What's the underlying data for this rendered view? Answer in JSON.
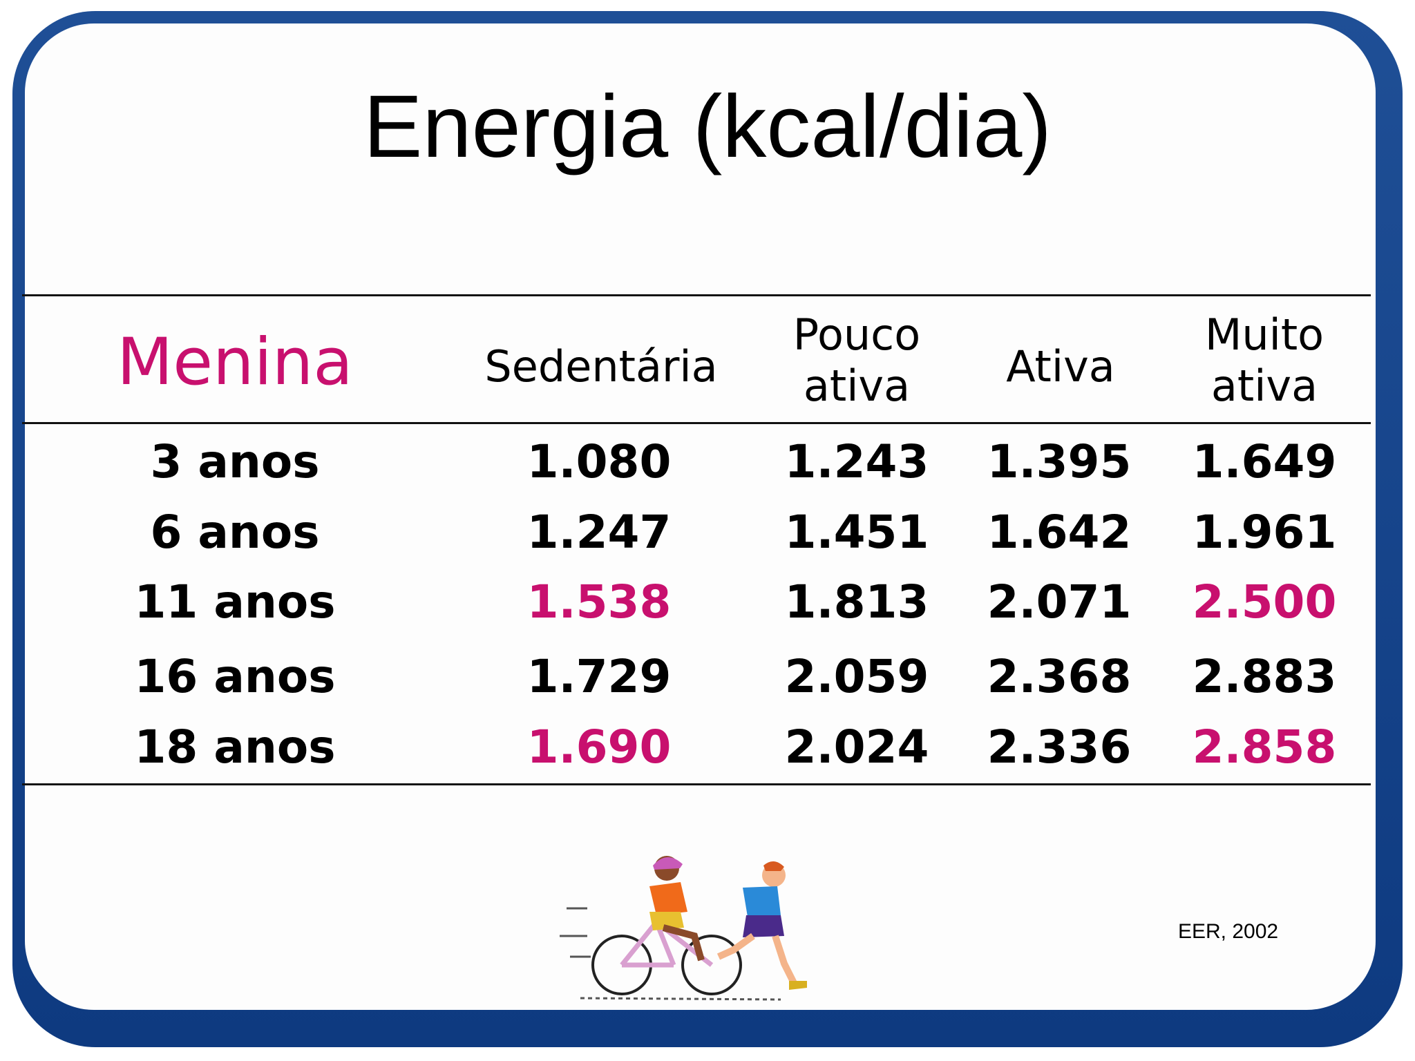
{
  "title": "Energia (kcal/dia)",
  "table": {
    "row_header": "Menina",
    "columns": [
      "Sedentária",
      "Pouco ativa",
      "Ativa",
      "Muito ativa"
    ],
    "rows": [
      {
        "label": "3 anos",
        "values": [
          "1.080",
          "1.243",
          "1.395",
          "1.649"
        ]
      },
      {
        "label": "6 anos",
        "values": [
          "1.247",
          "1.451",
          "1.642",
          "1.961"
        ]
      },
      {
        "label": "11 anos",
        "values": [
          "1.538",
          "1.813",
          "2.071",
          "2.500"
        ]
      },
      {
        "label": "16 anos",
        "values": [
          "1.729",
          "2.059",
          "2.368",
          "2.883"
        ]
      },
      {
        "label": "18 anos",
        "values": [
          "1.690",
          "2.024",
          "2.336",
          "2.858"
        ]
      }
    ],
    "highlighted_values": [
      "1.538",
      "2.500",
      "1.690",
      "2.858"
    ]
  },
  "source": "EER, 2002",
  "illustration": "girl-on-bicycle-and-boy-running-clipart",
  "colors": {
    "highlight": "#c8106e",
    "frame": "#123f86",
    "text": "#000000"
  }
}
